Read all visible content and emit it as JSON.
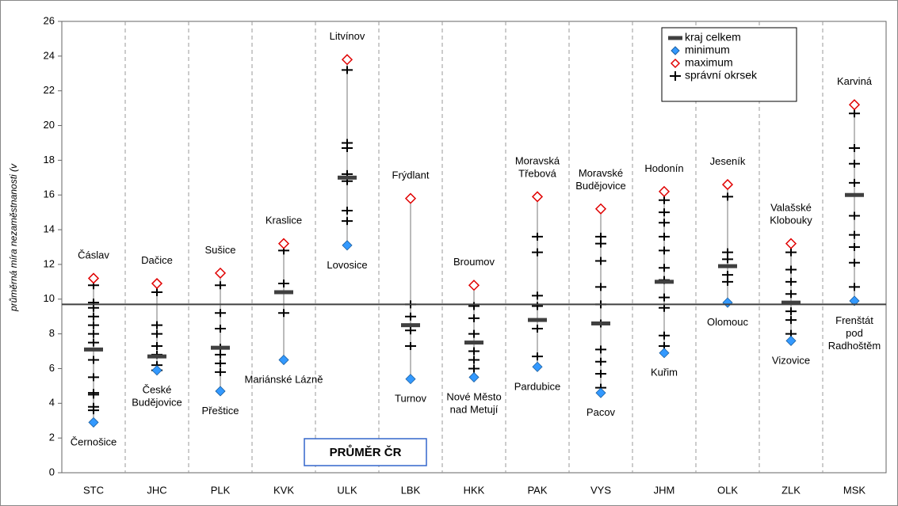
{
  "chart_data": {
    "type": "range",
    "y_label": "průměrná míra nezaměstnanosti (v",
    "categories": [
      "STC",
      "JHC",
      "PLK",
      "KVK",
      "ULK",
      "LBK",
      "HKK",
      "PAK",
      "VYS",
      "JHM",
      "OLK",
      "ZLK",
      "MSK"
    ],
    "ylim": [
      0,
      26
    ],
    "yticks": [
      0,
      2,
      4,
      6,
      8,
      10,
      12,
      14,
      16,
      18,
      20,
      22,
      24,
      26
    ],
    "grid": true,
    "legend": "top-right",
    "average": {
      "label": "PRŮMĚR ČR",
      "value": 9.7,
      "color": "#404040"
    },
    "series": [
      {
        "name": "kraj celkem",
        "color": "#404040",
        "values": [
          7.1,
          6.7,
          7.2,
          10.4,
          17.0,
          8.5,
          7.5,
          8.8,
          8.6,
          11.0,
          11.9,
          9.8,
          16.0
        ]
      },
      {
        "name": "minimum",
        "color": "#3399ff",
        "values": [
          2.9,
          5.9,
          4.7,
          6.5,
          13.1,
          5.4,
          5.5,
          6.1,
          4.6,
          6.9,
          9.8,
          7.6,
          9.9
        ],
        "point_labels": [
          [
            "Černošice"
          ],
          [
            "České",
            "Budějovice"
          ],
          [
            "Přeštice"
          ],
          [
            "Mariánské Lázně"
          ],
          [
            "Lovosice"
          ],
          [
            "Turnov"
          ],
          [
            "Nové Město",
            "nad Metují"
          ],
          [
            "Pardubice"
          ],
          [
            "Pacov"
          ],
          [
            "Kuřim"
          ],
          [
            "Olomouc"
          ],
          [
            "Vizovice"
          ],
          [
            "Frenštát",
            "pod",
            "Radhoštěm"
          ]
        ]
      },
      {
        "name": "maximum",
        "color": "#e00000",
        "values": [
          11.2,
          10.9,
          11.5,
          13.2,
          23.8,
          15.8,
          10.8,
          15.9,
          15.2,
          16.2,
          16.6,
          13.2,
          21.2
        ],
        "point_labels": [
          [
            "Čáslav"
          ],
          [
            "Dačice"
          ],
          [
            "Sušice"
          ],
          [
            "Kraslice"
          ],
          [
            "Litvínov"
          ],
          [
            "Frýdlant"
          ],
          [
            "Broumov"
          ],
          [
            "Moravská",
            "Třebová"
          ],
          [
            "Moravské",
            "Budějovice"
          ],
          [
            "Hodonín"
          ],
          [
            "Jeseník"
          ],
          [
            "Valašské",
            "Klobouky"
          ],
          [
            "Karviná"
          ]
        ]
      },
      {
        "name": "správní okrsek",
        "color": "#000000",
        "values": [
          [
            3.6,
            3.8,
            4.5,
            4.6,
            5.5,
            6.5,
            7.5,
            8.0,
            8.5,
            9.0,
            9.5,
            9.8,
            10.8
          ],
          [
            5.9,
            6.2,
            6.8,
            7.3,
            8.0,
            8.5,
            10.4
          ],
          [
            5.8,
            6.3,
            6.8,
            7.2,
            8.3,
            9.2,
            10.8
          ],
          [
            9.2,
            10.9,
            12.8
          ],
          [
            14.5,
            15.1,
            16.8,
            17.2,
            18.7,
            19.0,
            23.2
          ],
          [
            7.3,
            8.2,
            9.0,
            9.7
          ],
          [
            6.0,
            6.5,
            7.0,
            8.0,
            8.9,
            9.6
          ],
          [
            6.7,
            8.3,
            9.6,
            10.2,
            12.7,
            13.6
          ],
          [
            4.9,
            5.7,
            6.4,
            7.1,
            8.6,
            9.7,
            10.7,
            12.2,
            13.2,
            13.6
          ],
          [
            7.3,
            7.9,
            9.5,
            10.1,
            11.1,
            11.8,
            12.8,
            13.6,
            14.4,
            15.0,
            15.7
          ],
          [
            11.0,
            11.4,
            12.3,
            12.7,
            15.9
          ],
          [
            8.0,
            8.8,
            9.3,
            10.3,
            11.0,
            11.7,
            12.7
          ],
          [
            10.7,
            12.1,
            13.0,
            13.7,
            14.8,
            16.7,
            17.8,
            18.7,
            20.7
          ]
        ]
      }
    ]
  }
}
